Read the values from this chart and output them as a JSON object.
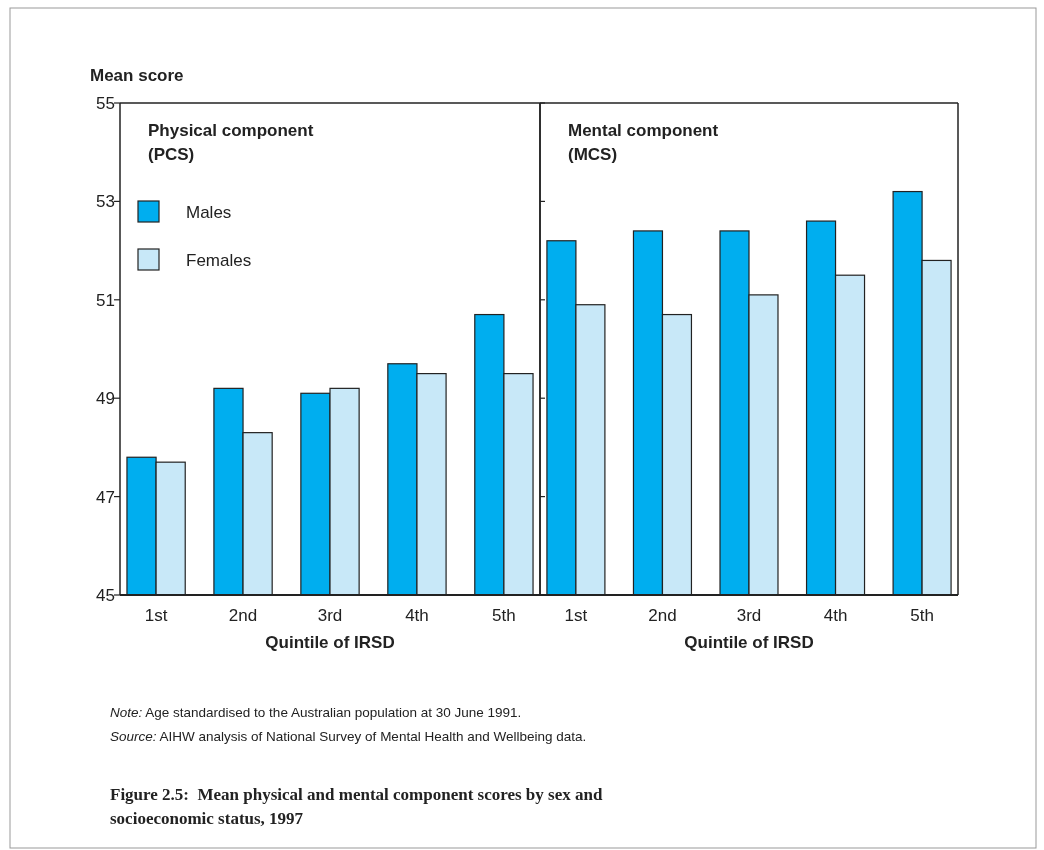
{
  "chart_data": [
    {
      "type": "bar",
      "title": "Physical component\n(PCS)",
      "ylabel": "Mean score",
      "xlabel": "Quintile of IRSD",
      "categories": [
        "1st",
        "2nd",
        "3rd",
        "4th",
        "5th"
      ],
      "series": [
        {
          "name": "Males",
          "color": "#00aeef",
          "values": [
            47.8,
            49.2,
            49.1,
            49.7,
            50.7
          ]
        },
        {
          "name": "Females",
          "color": "#c8e8f8",
          "values": [
            47.7,
            48.3,
            49.2,
            49.5,
            49.5
          ]
        }
      ],
      "ylim": [
        45,
        55
      ],
      "yticks": [
        45,
        47,
        49,
        51,
        53,
        55
      ],
      "legend": "top left",
      "annotations": [
        "Note: Age standardised to the Australian population at 30 June 1991.",
        "Source: AIHW analysis of National Survey of Mental Health and Wellbeing data.",
        "Figure 2.5:  Mean physical and mental component scores by sex and socioeconomic status, 1997"
      ]
    },
    {
      "type": "bar",
      "title": "Mental component\n(MCS)",
      "xlabel": "Quintile of IRSD",
      "categories": [
        "1st",
        "2nd",
        "3rd",
        "4th",
        "5th"
      ],
      "series": [
        {
          "color": "#00aeef",
          "values": [
            52.2,
            52.4,
            52.4,
            52.6,
            53.2
          ]
        },
        {
          "color": "#c8e8f8",
          "values": [
            50.9,
            50.7,
            51.1,
            51.5,
            51.8
          ]
        }
      ],
      "ylim": [
        45,
        55
      ],
      "yticks": [
        45,
        47,
        49,
        51,
        53,
        55
      ],
      "tick_labels": "x"
    }
  ]
}
